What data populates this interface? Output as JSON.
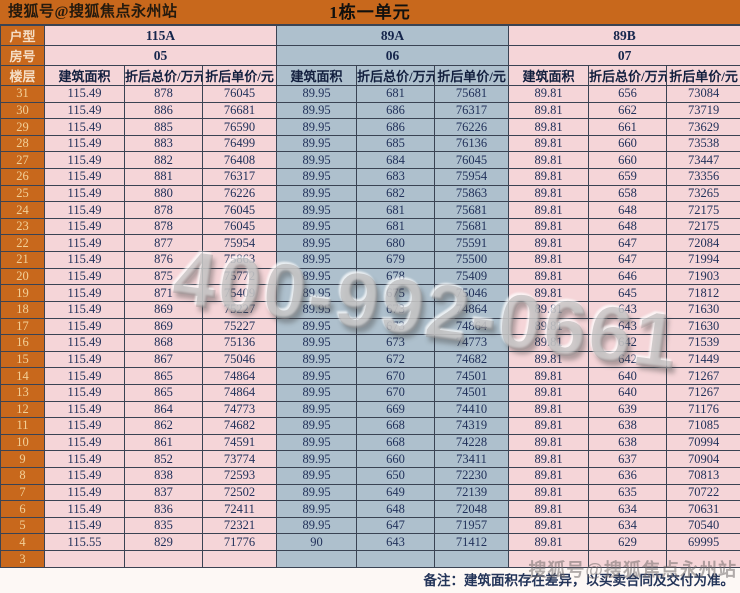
{
  "title_bar": {
    "source": "搜狐号@搜狐焦点永州站",
    "title": "1栋一单元"
  },
  "table": {
    "row_labels": {
      "unit_type": "户型",
      "room_no": "房号",
      "floor": "楼层"
    },
    "sub_headers": [
      "建筑面积",
      "折后总价/万元",
      "折后单价/元"
    ],
    "sections": [
      {
        "unit_type": "115A",
        "room_no": "05",
        "theme": "pink"
      },
      {
        "unit_type": "89A",
        "room_no": "06",
        "theme": "blue"
      },
      {
        "unit_type": "89B",
        "room_no": "07",
        "theme": "pink"
      }
    ],
    "rows": [
      {
        "floor": "31",
        "cells": [
          [
            "115.49",
            "878",
            "76045"
          ],
          [
            "89.95",
            "681",
            "75681"
          ],
          [
            "89.81",
            "656",
            "73084"
          ]
        ]
      },
      {
        "floor": "30",
        "cells": [
          [
            "115.49",
            "886",
            "76681"
          ],
          [
            "89.95",
            "686",
            "76317"
          ],
          [
            "89.81",
            "662",
            "73719"
          ]
        ]
      },
      {
        "floor": "29",
        "cells": [
          [
            "115.49",
            "885",
            "76590"
          ],
          [
            "89.95",
            "686",
            "76226"
          ],
          [
            "89.81",
            "661",
            "73629"
          ]
        ]
      },
      {
        "floor": "28",
        "cells": [
          [
            "115.49",
            "883",
            "76499"
          ],
          [
            "89.95",
            "685",
            "76136"
          ],
          [
            "89.81",
            "660",
            "73538"
          ]
        ]
      },
      {
        "floor": "27",
        "cells": [
          [
            "115.49",
            "882",
            "76408"
          ],
          [
            "89.95",
            "684",
            "76045"
          ],
          [
            "89.81",
            "660",
            "73447"
          ]
        ]
      },
      {
        "floor": "26",
        "cells": [
          [
            "115.49",
            "881",
            "76317"
          ],
          [
            "89.95",
            "683",
            "75954"
          ],
          [
            "89.81",
            "659",
            "73356"
          ]
        ]
      },
      {
        "floor": "25",
        "cells": [
          [
            "115.49",
            "880",
            "76226"
          ],
          [
            "89.95",
            "682",
            "75863"
          ],
          [
            "89.81",
            "658",
            "73265"
          ]
        ]
      },
      {
        "floor": "24",
        "cells": [
          [
            "115.49",
            "878",
            "76045"
          ],
          [
            "89.95",
            "681",
            "75681"
          ],
          [
            "89.81",
            "648",
            "72175"
          ]
        ]
      },
      {
        "floor": "23",
        "cells": [
          [
            "115.49",
            "878",
            "76045"
          ],
          [
            "89.95",
            "681",
            "75681"
          ],
          [
            "89.81",
            "648",
            "72175"
          ]
        ]
      },
      {
        "floor": "22",
        "cells": [
          [
            "115.49",
            "877",
            "75954"
          ],
          [
            "89.95",
            "680",
            "75591"
          ],
          [
            "89.81",
            "647",
            "72084"
          ]
        ]
      },
      {
        "floor": "21",
        "cells": [
          [
            "115.49",
            "876",
            "75863"
          ],
          [
            "89.95",
            "679",
            "75500"
          ],
          [
            "89.81",
            "647",
            "71994"
          ]
        ]
      },
      {
        "floor": "20",
        "cells": [
          [
            "115.49",
            "875",
            "75772"
          ],
          [
            "89.95",
            "678",
            "75409"
          ],
          [
            "89.81",
            "646",
            "71903"
          ]
        ]
      },
      {
        "floor": "19",
        "cells": [
          [
            "115.49",
            "871",
            "75409"
          ],
          [
            "89.95",
            "675",
            "75046"
          ],
          [
            "89.81",
            "645",
            "71812"
          ]
        ]
      },
      {
        "floor": "18",
        "cells": [
          [
            "115.49",
            "869",
            "75227"
          ],
          [
            "89.95",
            "673",
            "74864"
          ],
          [
            "89.81",
            "643",
            "71630"
          ]
        ]
      },
      {
        "floor": "17",
        "cells": [
          [
            "115.49",
            "869",
            "75227"
          ],
          [
            "89.95",
            "673",
            "74864"
          ],
          [
            "89.81",
            "643",
            "71630"
          ]
        ]
      },
      {
        "floor": "16",
        "cells": [
          [
            "115.49",
            "868",
            "75136"
          ],
          [
            "89.95",
            "673",
            "74773"
          ],
          [
            "89.81",
            "642",
            "71539"
          ]
        ]
      },
      {
        "floor": "15",
        "cells": [
          [
            "115.49",
            "867",
            "75046"
          ],
          [
            "89.95",
            "672",
            "74682"
          ],
          [
            "89.81",
            "642",
            "71449"
          ]
        ]
      },
      {
        "floor": "14",
        "cells": [
          [
            "115.49",
            "865",
            "74864"
          ],
          [
            "89.95",
            "670",
            "74501"
          ],
          [
            "89.81",
            "640",
            "71267"
          ]
        ]
      },
      {
        "floor": "13",
        "cells": [
          [
            "115.49",
            "865",
            "74864"
          ],
          [
            "89.95",
            "670",
            "74501"
          ],
          [
            "89.81",
            "640",
            "71267"
          ]
        ]
      },
      {
        "floor": "12",
        "cells": [
          [
            "115.49",
            "864",
            "74773"
          ],
          [
            "89.95",
            "669",
            "74410"
          ],
          [
            "89.81",
            "639",
            "71176"
          ]
        ]
      },
      {
        "floor": "11",
        "cells": [
          [
            "115.49",
            "862",
            "74682"
          ],
          [
            "89.95",
            "668",
            "74319"
          ],
          [
            "89.81",
            "638",
            "71085"
          ]
        ]
      },
      {
        "floor": "10",
        "cells": [
          [
            "115.49",
            "861",
            "74591"
          ],
          [
            "89.95",
            "668",
            "74228"
          ],
          [
            "89.81",
            "638",
            "70994"
          ]
        ]
      },
      {
        "floor": "9",
        "cells": [
          [
            "115.49",
            "852",
            "73774"
          ],
          [
            "89.95",
            "660",
            "73411"
          ],
          [
            "89.81",
            "637",
            "70904"
          ]
        ]
      },
      {
        "floor": "8",
        "cells": [
          [
            "115.49",
            "838",
            "72593"
          ],
          [
            "89.95",
            "650",
            "72230"
          ],
          [
            "89.81",
            "636",
            "70813"
          ]
        ]
      },
      {
        "floor": "7",
        "cells": [
          [
            "115.49",
            "837",
            "72502"
          ],
          [
            "89.95",
            "649",
            "72139"
          ],
          [
            "89.81",
            "635",
            "70722"
          ]
        ]
      },
      {
        "floor": "6",
        "cells": [
          [
            "115.49",
            "836",
            "72411"
          ],
          [
            "89.95",
            "648",
            "72048"
          ],
          [
            "89.81",
            "634",
            "70631"
          ]
        ]
      },
      {
        "floor": "5",
        "cells": [
          [
            "115.49",
            "835",
            "72321"
          ],
          [
            "89.95",
            "647",
            "71957"
          ],
          [
            "89.81",
            "634",
            "70540"
          ]
        ]
      },
      {
        "floor": "4",
        "cells": [
          [
            "115.55",
            "829",
            "71776"
          ],
          [
            "90",
            "643",
            "71412"
          ],
          [
            "89.81",
            "629",
            "69995"
          ]
        ]
      },
      {
        "floor": "3",
        "cells": [
          [
            "",
            "",
            ""
          ],
          [
            "",
            "",
            ""
          ],
          [
            "",
            "",
            ""
          ]
        ]
      }
    ]
  },
  "footer": {
    "note": "备注：建筑面积存在差异，以买卖合同及交付为准。"
  },
  "watermarks": {
    "phone": "400-992-0661",
    "source": "搜狐号@搜狐焦点永州站"
  },
  "colors": {
    "orange": "#c8681c",
    "pink_section": "#f5d5d8",
    "blue_section": "#aec0cd",
    "cell_text": "#21315a",
    "floor_text": "#f2d098",
    "border": "#3a4353"
  }
}
